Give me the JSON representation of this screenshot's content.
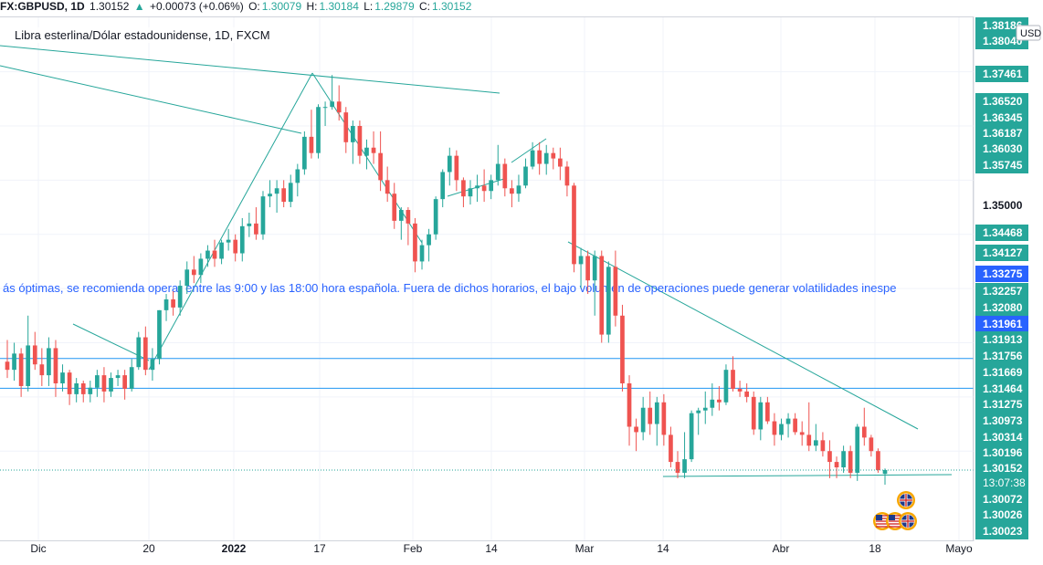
{
  "header": {
    "symbol_label": "FX:GBPUSD, 1D",
    "last": "1.30152",
    "change_arrow": "▲",
    "change": "+0.00073 (+0.06%)",
    "o_label": "O:",
    "o": "1.30079",
    "h_label": "H:",
    "h": "1.30184",
    "l_label": "L:",
    "l": "1.29879",
    "c_label": "C:",
    "c": "1.30152"
  },
  "chart_title": "Libra esterlina/Dólar estadounidense, 1D, FXCM",
  "annotation_text": "ás óptimas, se recomienda operar entre las 9:00 y las 18:00 hora española. Fuera de dichos horarios, el bajo volumen de operaciones puede generar volatilidades inespe",
  "currency_badge": "USD",
  "countdown": "13:07:38",
  "colors": {
    "up": "#26a69a",
    "down": "#ef5350",
    "line": "#2196f3",
    "trend": "#26a69a",
    "current_price_bg": "#26a69a",
    "highlight_bg": "#2962ff"
  },
  "chart_data": {
    "type": "candlestick",
    "title": "Libra esterlina/Dólar estadounidense, 1D, FXCM",
    "ylim": [
      1.2995,
      1.382
    ],
    "x_ticks": [
      "Dic",
      "20",
      "2022",
      "17",
      "Feb",
      "14",
      "Mar",
      "14",
      "Abr",
      "18",
      "Mayo"
    ],
    "y_ticks": [
      "1.38186",
      "1.38040",
      "1.37461",
      "1.36520",
      "1.36345",
      "1.36187",
      "1.36030",
      "1.35745",
      "1.35000",
      "1.34468",
      "1.34127",
      "1.33275",
      "1.32257",
      "1.32080",
      "1.31961",
      "1.31913",
      "1.31756",
      "1.31669",
      "1.31464",
      "1.31275",
      "1.30973",
      "1.30314",
      "1.30196",
      "1.30152",
      "1.30072",
      "1.30026",
      "1.30023"
    ],
    "price_labels_highlighted": [
      {
        "value": "1.33275",
        "style": "blue"
      },
      {
        "value": "1.31961",
        "style": "blue"
      },
      {
        "value": "1.30152",
        "style": "green"
      }
    ],
    "horizontal_lines": [
      1.3221,
      1.3166
    ],
    "candles": [
      [
        1.3215,
        1.3255,
        1.3185,
        1.32
      ],
      [
        1.32,
        1.325,
        1.318,
        1.323
      ],
      [
        1.323,
        1.324,
        1.315,
        1.317
      ],
      [
        1.317,
        1.33,
        1.316,
        1.3245
      ],
      [
        1.3245,
        1.327,
        1.32,
        1.321
      ],
      [
        1.321,
        1.324,
        1.317,
        1.319
      ],
      [
        1.319,
        1.326,
        1.317,
        1.324
      ],
      [
        1.324,
        1.3255,
        1.315,
        1.3175
      ],
      [
        1.3175,
        1.321,
        1.316,
        1.3195
      ],
      [
        1.3195,
        1.32,
        1.3135,
        1.3155
      ],
      [
        1.3155,
        1.3185,
        1.314,
        1.3175
      ],
      [
        1.3175,
        1.318,
        1.314,
        1.3155
      ],
      [
        1.3155,
        1.318,
        1.314,
        1.3167
      ],
      [
        1.3167,
        1.32,
        1.315,
        1.319
      ],
      [
        1.319,
        1.3205,
        1.314,
        1.316
      ],
      [
        1.316,
        1.3195,
        1.315,
        1.3185
      ],
      [
        1.3185,
        1.32,
        1.317,
        1.319
      ],
      [
        1.319,
        1.32,
        1.3145,
        1.3165
      ],
      [
        1.3165,
        1.322,
        1.316,
        1.3205
      ],
      [
        1.3205,
        1.327,
        1.32,
        1.326
      ],
      [
        1.326,
        1.328,
        1.319,
        1.32
      ],
      [
        1.32,
        1.324,
        1.318,
        1.322
      ],
      [
        1.322,
        1.331,
        1.321,
        1.331
      ],
      [
        1.331,
        1.334,
        1.329,
        1.333
      ],
      [
        1.333,
        1.3345,
        1.33,
        1.3315
      ],
      [
        1.3315,
        1.3365,
        1.33,
        1.3355
      ],
      [
        1.3355,
        1.34,
        1.334,
        1.3385
      ],
      [
        1.3385,
        1.341,
        1.336,
        1.3375
      ],
      [
        1.3375,
        1.3415,
        1.336,
        1.3405
      ],
      [
        1.3405,
        1.343,
        1.339,
        1.342
      ],
      [
        1.342,
        1.344,
        1.339,
        1.3405
      ],
      [
        1.3405,
        1.344,
        1.3395,
        1.3435
      ],
      [
        1.3435,
        1.346,
        1.342,
        1.344
      ],
      [
        1.344,
        1.345,
        1.34,
        1.3415
      ],
      [
        1.3415,
        1.348,
        1.34,
        1.3465
      ],
      [
        1.3465,
        1.349,
        1.3445,
        1.347
      ],
      [
        1.347,
        1.35,
        1.344,
        1.345
      ],
      [
        1.345,
        1.353,
        1.344,
        1.352
      ],
      [
        1.352,
        1.355,
        1.35,
        1.3525
      ],
      [
        1.3525,
        1.355,
        1.349,
        1.3535
      ],
      [
        1.3535,
        1.355,
        1.35,
        1.351
      ],
      [
        1.351,
        1.356,
        1.35,
        1.3545
      ],
      [
        1.3545,
        1.358,
        1.352,
        1.357
      ],
      [
        1.357,
        1.364,
        1.356,
        1.363
      ],
      [
        1.363,
        1.368,
        1.359,
        1.36
      ],
      [
        1.36,
        1.369,
        1.359,
        1.3685
      ],
      [
        1.3685,
        1.3695,
        1.365,
        1.3685
      ],
      [
        1.3685,
        1.3744,
        1.368,
        1.3695
      ],
      [
        1.3695,
        1.3725,
        1.366,
        1.3675
      ],
      [
        1.3675,
        1.3685,
        1.36,
        1.362
      ],
      [
        1.362,
        1.366,
        1.358,
        1.365
      ],
      [
        1.365,
        1.366,
        1.358,
        1.3595
      ],
      [
        1.3595,
        1.3625,
        1.357,
        1.361
      ],
      [
        1.361,
        1.364,
        1.358,
        1.36
      ],
      [
        1.36,
        1.364,
        1.353,
        1.355
      ],
      [
        1.355,
        1.3575,
        1.351,
        1.3525
      ],
      [
        1.3525,
        1.3545,
        1.346,
        1.3475
      ],
      [
        1.3475,
        1.35,
        1.344,
        1.3495
      ],
      [
        1.3495,
        1.35,
        1.343,
        1.347
      ],
      [
        1.347,
        1.348,
        1.338,
        1.34
      ],
      [
        1.34,
        1.344,
        1.3385,
        1.343
      ],
      [
        1.343,
        1.346,
        1.34,
        1.345
      ],
      [
        1.345,
        1.352,
        1.344,
        1.3515
      ],
      [
        1.3515,
        1.357,
        1.35,
        1.3565
      ],
      [
        1.3565,
        1.361,
        1.354,
        1.3595
      ],
      [
        1.3595,
        1.3605,
        1.353,
        1.355
      ],
      [
        1.355,
        1.3555,
        1.35,
        1.352
      ],
      [
        1.352,
        1.355,
        1.3505,
        1.3535
      ],
      [
        1.3535,
        1.356,
        1.351,
        1.354
      ],
      [
        1.354,
        1.357,
        1.351,
        1.353
      ],
      [
        1.353,
        1.356,
        1.3515,
        1.355
      ],
      [
        1.355,
        1.3615,
        1.354,
        1.358
      ],
      [
        1.358,
        1.359,
        1.352,
        1.3535
      ],
      [
        1.3535,
        1.355,
        1.35,
        1.3525
      ],
      [
        1.3525,
        1.356,
        1.351,
        1.354
      ],
      [
        1.354,
        1.359,
        1.3535,
        1.3575
      ],
      [
        1.3575,
        1.362,
        1.357,
        1.3605
      ],
      [
        1.3605,
        1.362,
        1.356,
        1.358
      ],
      [
        1.358,
        1.3615,
        1.356,
        1.36
      ],
      [
        1.36,
        1.361,
        1.357,
        1.359
      ],
      [
        1.359,
        1.361,
        1.355,
        1.3575
      ],
      [
        1.3575,
        1.3585,
        1.352,
        1.354
      ],
      [
        1.354,
        1.3545,
        1.338,
        1.3395
      ],
      [
        1.3395,
        1.3425,
        1.335,
        1.341
      ],
      [
        1.341,
        1.342,
        1.334,
        1.3365
      ],
      [
        1.3365,
        1.342,
        1.33,
        1.341
      ],
      [
        1.341,
        1.342,
        1.325,
        1.3265
      ],
      [
        1.3265,
        1.34,
        1.325,
        1.339
      ],
      [
        1.339,
        1.342,
        1.328,
        1.33
      ],
      [
        1.33,
        1.332,
        1.316,
        1.3175
      ],
      [
        1.3175,
        1.319,
        1.306,
        1.3095
      ],
      [
        1.3095,
        1.311,
        1.305,
        1.3085
      ],
      [
        1.3085,
        1.315,
        1.307,
        1.313
      ],
      [
        1.313,
        1.316,
        1.308,
        1.31
      ],
      [
        1.31,
        1.315,
        1.306,
        1.314
      ],
      [
        1.314,
        1.3155,
        1.306,
        1.308
      ],
      [
        1.308,
        1.3095,
        1.302,
        1.303
      ],
      [
        1.303,
        1.305,
        1.3,
        1.301
      ],
      [
        1.301,
        1.3085,
        1.3,
        1.3035
      ],
      [
        1.3035,
        1.3125,
        1.303,
        1.312
      ],
      [
        1.312,
        1.313,
        1.308,
        1.3125
      ],
      [
        1.3125,
        1.316,
        1.31,
        1.313
      ],
      [
        1.313,
        1.3175,
        1.3115,
        1.3145
      ],
      [
        1.3145,
        1.317,
        1.3125,
        1.314
      ],
      [
        1.314,
        1.321,
        1.3135,
        1.32
      ],
      [
        1.32,
        1.3225,
        1.316,
        1.3165
      ],
      [
        1.3165,
        1.318,
        1.315,
        1.316
      ],
      [
        1.316,
        1.3175,
        1.314,
        1.315
      ],
      [
        1.315,
        1.316,
        1.308,
        1.309
      ],
      [
        1.309,
        1.315,
        1.307,
        1.314
      ],
      [
        1.314,
        1.315,
        1.31,
        1.3105
      ],
      [
        1.3105,
        1.312,
        1.306,
        1.308
      ],
      [
        1.308,
        1.311,
        1.307,
        1.31
      ],
      [
        1.31,
        1.312,
        1.3075,
        1.311
      ],
      [
        1.311,
        1.312,
        1.308,
        1.3085
      ],
      [
        1.3085,
        1.3105,
        1.306,
        1.308
      ],
      [
        1.308,
        1.314,
        1.305,
        1.306
      ],
      [
        1.306,
        1.31,
        1.305,
        1.307
      ],
      [
        1.307,
        1.3085,
        1.304,
        1.305
      ],
      [
        1.305,
        1.307,
        1.3,
        1.303
      ],
      [
        1.303,
        1.304,
        1.3,
        1.302
      ],
      [
        1.302,
        1.306,
        1.301,
        1.305
      ],
      [
        1.305,
        1.306,
        1.3,
        1.301
      ],
      [
        1.301,
        1.31,
        1.2995,
        1.3095
      ],
      [
        1.3095,
        1.313,
        1.306,
        1.3075
      ],
      [
        1.3075,
        1.308,
        1.304,
        1.305
      ],
      [
        1.305,
        1.3055,
        1.301,
        1.3015
      ],
      [
        1.3008,
        1.3018,
        1.2988,
        1.3015
      ]
    ]
  },
  "timescale_labels": [
    "Dic",
    "20",
    "2022",
    "17",
    "Feb",
    "14",
    "Mar",
    "14",
    "Abr",
    "18",
    "Mayo"
  ]
}
